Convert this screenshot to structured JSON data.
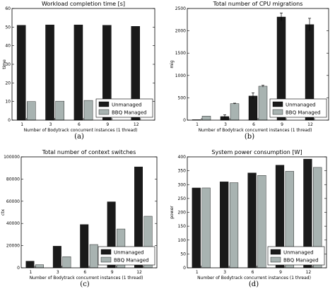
{
  "figure": {
    "colors": {
      "unmanaged": "#1a1a1a",
      "managed": "#a8b3b1",
      "error": "#000000"
    }
  },
  "chart_data": [
    {
      "type": "bar",
      "title": "Workload completion time [s]",
      "xlabel": "Number of  Bodytrack  concurrent instances (1 thread)",
      "ylabel": "time",
      "caption": "(a)",
      "categories": [
        "1",
        "3",
        "6",
        "9",
        "12"
      ],
      "ylim": [
        0,
        60
      ],
      "yticks": [
        0,
        10,
        20,
        30,
        40,
        50,
        60
      ],
      "legend_position": "bottom-right",
      "series": [
        {
          "name": "Unmanaged",
          "values": [
            51,
            51.2,
            51.2,
            51,
            50.4
          ],
          "errors": [
            0,
            0,
            0,
            0,
            0
          ]
        },
        {
          "name": "BBQ Managed",
          "values": [
            10,
            10.2,
            10.6,
            0,
            0
          ],
          "errors": [
            0,
            0,
            0,
            0,
            0
          ]
        }
      ]
    },
    {
      "type": "bar",
      "title": "Total number of CPU migrations",
      "xlabel": "Number of  Bodytrack  concurrent instances (1 thread)",
      "ylabel": "mig",
      "caption": "(b)",
      "categories": [
        "1",
        "3",
        "6",
        "9",
        "12"
      ],
      "ylim": [
        0,
        2500
      ],
      "yticks": [
        0,
        500,
        1000,
        1500,
        2000,
        2500
      ],
      "legend_position": "bottom-right",
      "series": [
        {
          "name": "Unmanaged",
          "values": [
            10,
            80,
            540,
            2310,
            2140
          ],
          "errors": [
            0,
            40,
            70,
            90,
            140
          ]
        },
        {
          "name": "BBQ Managed",
          "values": [
            90,
            370,
            760,
            0,
            0
          ],
          "errors": [
            0,
            10,
            20,
            0,
            0
          ]
        }
      ]
    },
    {
      "type": "bar",
      "title": "Total number of context switches",
      "xlabel": "Number of  Bodytrack  concurrent instances (1 thread)",
      "ylabel": "ctx",
      "caption": "(c)",
      "categories": [
        "1",
        "3",
        "6",
        "9",
        "12"
      ],
      "ylim": [
        0,
        100000
      ],
      "yticks": [
        0,
        20000,
        40000,
        60000,
        80000,
        100000
      ],
      "legend_position": "bottom-right",
      "series": [
        {
          "name": "Unmanaged",
          "values": [
            6000,
            19500,
            39000,
            59500,
            91000
          ],
          "errors": [
            0,
            0,
            0,
            0,
            0
          ]
        },
        {
          "name": "BBQ Managed",
          "values": [
            2800,
            10000,
            21000,
            35000,
            46500
          ],
          "errors": [
            0,
            0,
            0,
            0,
            0
          ]
        }
      ]
    },
    {
      "type": "bar",
      "title": "System power consumption [W]",
      "xlabel": "Number of  Bodytrack  concurrent instances (1 thread)",
      "ylabel": "power",
      "caption": "(d)",
      "categories": [
        "1",
        "3",
        "6",
        "9",
        "12"
      ],
      "ylim": [
        0,
        400
      ],
      "yticks": [
        0,
        50,
        100,
        150,
        200,
        250,
        300,
        350,
        400
      ],
      "legend_position": "bottom-right",
      "series": [
        {
          "name": "Unmanaged",
          "values": [
            288,
            310,
            342,
            370,
            392
          ],
          "errors": [
            0,
            0,
            0,
            0,
            0
          ]
        },
        {
          "name": "BBQ Managed",
          "values": [
            288,
            307,
            333,
            348,
            362
          ],
          "errors": [
            0,
            0,
            0,
            0,
            0
          ]
        }
      ]
    }
  ]
}
